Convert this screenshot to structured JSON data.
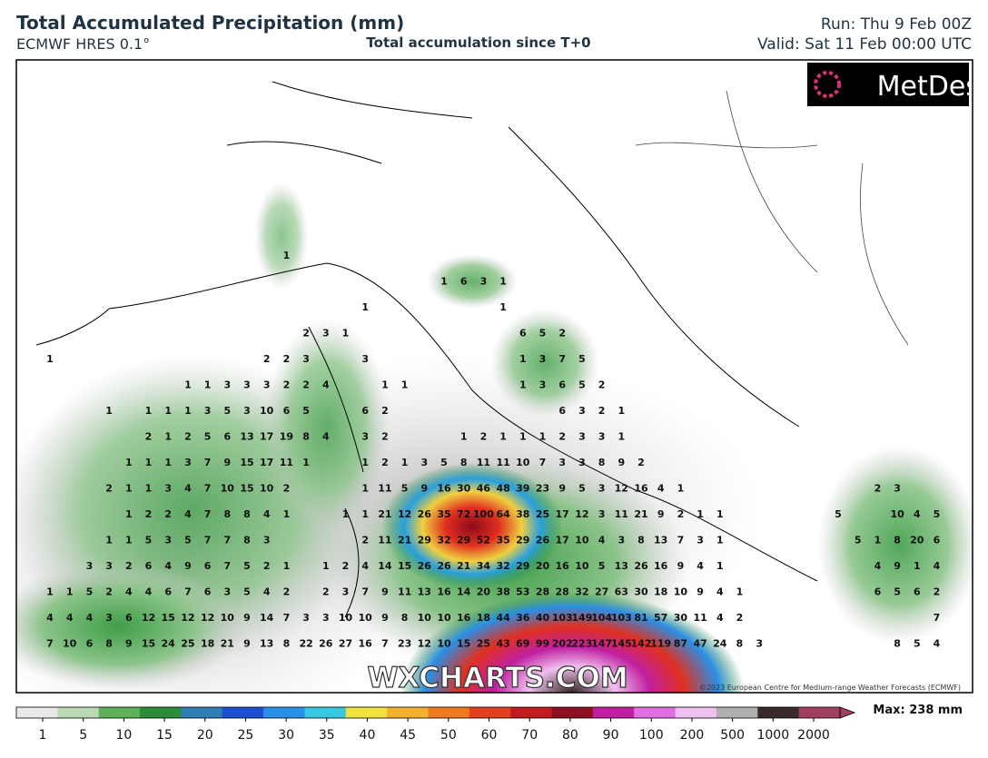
{
  "header": {
    "title": "Total Accumulated Precipitation (mm)",
    "model": "ECMWF HRES 0.1°",
    "subtitle": "Total accumulation since T+0",
    "run": "Run: Thu 9 Feb 00Z",
    "valid": "Valid: Sat 11 Feb 00:00 UTC"
  },
  "map": {
    "logo": "MetDesk",
    "watermark": "WXCHARTS.COM",
    "copyright": "©2023 European Centre for Medium-range Weather Forecasts (ECMWF)",
    "rows": [
      [
        null,
        null,
        null,
        null,
        null,
        null,
        null,
        null,
        null,
        null,
        null,
        null,
        1
      ],
      [
        null,
        null,
        null,
        null,
        null,
        null,
        null,
        null,
        null,
        null,
        null,
        null,
        null,
        null,
        null,
        null,
        null,
        null,
        null,
        null,
        1,
        6,
        3,
        1
      ],
      [
        null,
        null,
        null,
        null,
        null,
        null,
        null,
        null,
        null,
        null,
        null,
        null,
        null,
        null,
        null,
        null,
        1,
        null,
        null,
        null,
        null,
        null,
        null,
        1
      ],
      [
        null,
        null,
        null,
        null,
        null,
        null,
        null,
        null,
        null,
        null,
        null,
        null,
        null,
        2,
        3,
        1,
        null,
        null,
        null,
        null,
        null,
        null,
        null,
        null,
        6,
        5,
        2
      ],
      [
        1,
        null,
        null,
        null,
        null,
        null,
        null,
        null,
        null,
        null,
        null,
        2,
        2,
        3,
        null,
        null,
        3,
        null,
        null,
        null,
        null,
        null,
        null,
        null,
        1,
        3,
        7,
        5
      ],
      [
        null,
        null,
        null,
        null,
        null,
        null,
        null,
        1,
        1,
        3,
        3,
        3,
        2,
        2,
        4,
        null,
        null,
        1,
        1,
        null,
        null,
        null,
        null,
        null,
        1,
        3,
        6,
        5,
        2
      ],
      [
        null,
        null,
        null,
        1,
        null,
        1,
        1,
        1,
        3,
        5,
        3,
        10,
        6,
        5,
        null,
        null,
        6,
        2,
        null,
        null,
        null,
        null,
        null,
        null,
        null,
        null,
        6,
        3,
        2,
        1
      ],
      [
        null,
        null,
        null,
        null,
        null,
        2,
        1,
        2,
        5,
        6,
        13,
        17,
        19,
        8,
        4,
        null,
        3,
        2,
        null,
        null,
        null,
        1,
        2,
        1,
        1,
        1,
        2,
        3,
        3,
        1
      ],
      [
        null,
        null,
        null,
        null,
        1,
        1,
        1,
        3,
        7,
        9,
        15,
        17,
        11,
        1,
        null,
        null,
        1,
        2,
        1,
        3,
        5,
        8,
        11,
        11,
        10,
        7,
        3,
        3,
        8,
        9,
        2
      ],
      [
        null,
        null,
        null,
        2,
        1,
        1,
        3,
        4,
        7,
        10,
        15,
        10,
        2,
        null,
        null,
        null,
        1,
        11,
        5,
        9,
        16,
        30,
        46,
        48,
        39,
        23,
        9,
        5,
        3,
        12,
        16,
        4,
        1,
        null,
        null,
        null,
        null,
        null,
        null,
        null,
        null,
        null,
        2,
        3
      ],
      [
        null,
        null,
        null,
        null,
        1,
        2,
        2,
        4,
        7,
        8,
        8,
        4,
        1,
        null,
        null,
        1,
        1,
        21,
        12,
        26,
        35,
        72,
        100,
        64,
        38,
        25,
        17,
        12,
        3,
        11,
        21,
        9,
        2,
        1,
        1,
        null,
        null,
        null,
        null,
        null,
        5,
        null,
        null,
        10,
        4,
        5
      ],
      [
        null,
        null,
        null,
        1,
        1,
        5,
        3,
        5,
        7,
        7,
        8,
        3,
        null,
        null,
        null,
        null,
        2,
        11,
        21,
        29,
        32,
        29,
        52,
        35,
        29,
        26,
        17,
        10,
        4,
        3,
        8,
        13,
        7,
        3,
        1,
        null,
        null,
        null,
        null,
        null,
        null,
        5,
        1,
        8,
        20,
        6
      ],
      [
        null,
        null,
        3,
        3,
        2,
        6,
        4,
        9,
        6,
        7,
        5,
        2,
        1,
        null,
        1,
        2,
        4,
        14,
        15,
        26,
        26,
        21,
        34,
        32,
        29,
        20,
        16,
        10,
        5,
        13,
        26,
        16,
        9,
        4,
        1,
        null,
        null,
        null,
        null,
        null,
        null,
        null,
        4,
        9,
        1,
        4
      ],
      [
        1,
        1,
        5,
        2,
        4,
        4,
        6,
        7,
        6,
        3,
        5,
        4,
        2,
        null,
        2,
        3,
        7,
        9,
        11,
        13,
        16,
        14,
        20,
        38,
        53,
        28,
        28,
        32,
        27,
        63,
        30,
        18,
        10,
        9,
        4,
        1,
        null,
        null,
        null,
        null,
        null,
        null,
        6,
        5,
        6,
        2
      ],
      [
        4,
        4,
        4,
        3,
        6,
        12,
        15,
        12,
        12,
        10,
        9,
        14,
        7,
        3,
        3,
        10,
        10,
        9,
        8,
        10,
        10,
        16,
        18,
        44,
        36,
        40,
        103,
        149,
        104,
        103,
        81,
        57,
        30,
        11,
        4,
        2,
        null,
        null,
        null,
        null,
        null,
        null,
        null,
        null,
        null,
        7
      ],
      [
        7,
        10,
        6,
        8,
        9,
        15,
        24,
        25,
        18,
        21,
        9,
        13,
        8,
        22,
        26,
        27,
        16,
        7,
        23,
        12,
        10,
        15,
        25,
        43,
        69,
        99,
        202,
        223,
        147,
        145,
        142,
        119,
        87,
        47,
        24,
        8,
        3,
        null,
        null,
        null,
        null,
        null,
        null,
        8,
        5,
        4
      ]
    ]
  },
  "colorbar": {
    "ticks": [
      1,
      5,
      10,
      15,
      20,
      25,
      30,
      35,
      40,
      45,
      50,
      60,
      70,
      80,
      90,
      100,
      200,
      500,
      1000,
      2000
    ],
    "colors": [
      "#e8e8e8",
      "#b9d9b3",
      "#5fb05a",
      "#2e8b3a",
      "#2f7fb5",
      "#1f4fd0",
      "#2a8fe6",
      "#37c8e0",
      "#f0e040",
      "#f4b030",
      "#f07a20",
      "#e04020",
      "#c01c20",
      "#8c1020",
      "#c020a0",
      "#e070e0",
      "#f0c0f0",
      "#b0b0b0",
      "#3a2a2a",
      "#a04060"
    ],
    "max_label": "Max: 238 mm"
  }
}
